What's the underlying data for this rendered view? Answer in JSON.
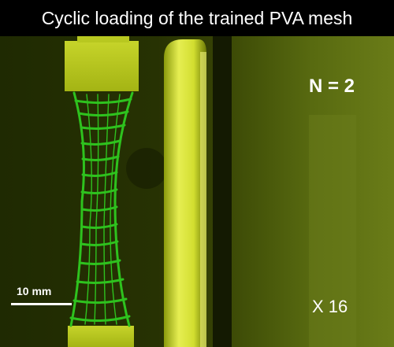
{
  "title": "Cyclic loading of the trained PVA mesh",
  "cycle_label": "N = 2",
  "speed_label": "X 16",
  "scale_bar_label": "10 mm",
  "colors": {
    "background": "#2a3404",
    "clamp": "#b4c41a",
    "mesh": "#2ec21e",
    "rod": "#dce63c"
  }
}
